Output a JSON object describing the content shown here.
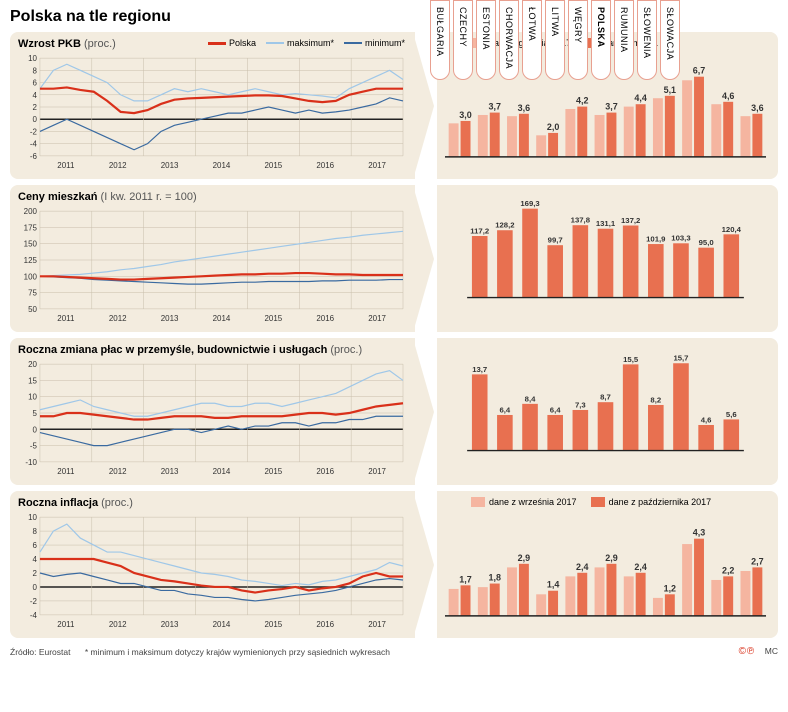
{
  "title": "Polska na tle regionu",
  "footer": {
    "source": "Źródło:  Eurostat",
    "note": "* minimum i maksimum dotyczy krajów wymienionych przy sąsiednich wykresach",
    "cc": "©℗",
    "author": "MC"
  },
  "countries": [
    "BUŁGARIA",
    "CZECHY",
    "ESTONIA",
    "CHORWACJA",
    "ŁOTWA",
    "LITWA",
    "WĘGRY",
    "POLSKA",
    "RUMUNIA",
    "SŁOWENIA",
    "SŁOWACJA"
  ],
  "bold_country_index": 7,
  "line_legend": {
    "polska": "Polska",
    "max": "maksimum*",
    "min": "minimum*"
  },
  "colors": {
    "bg_panel": "#f3ecdf",
    "polska": "#d9301a",
    "max": "#9fc7e8",
    "min": "#3a6aa0",
    "bar_light": "#f5b5a0",
    "bar_dark": "#e87050",
    "grid": "#c8beab",
    "zero": "#222222",
    "axis_text": "#333333"
  },
  "x_years": [
    "2011",
    "2012",
    "2013",
    "2014",
    "2015",
    "2016",
    "2017"
  ],
  "rows": [
    {
      "title": "Wzrost PKB",
      "unit": "(proc.)",
      "line": {
        "ylim": [
          -6,
          10
        ],
        "yticks": [
          -6,
          -4,
          -2,
          0,
          2,
          4,
          6,
          8,
          10
        ],
        "polska": [
          5,
          5,
          5.2,
          4.8,
          4.5,
          3.0,
          1.2,
          1.0,
          1.5,
          2.5,
          3.2,
          3.4,
          3.5,
          3.6,
          3.7,
          3.8,
          3.9,
          3.9,
          3.8,
          3.4,
          3.0,
          2.8,
          3.0,
          4.0,
          4.5,
          5.0,
          5.0,
          5.0
        ],
        "max": [
          5,
          8,
          9,
          8,
          7,
          6,
          4,
          3,
          3,
          4,
          5,
          4.5,
          5,
          4.5,
          4,
          4.5,
          5,
          4.5,
          4,
          4.2,
          4,
          3.8,
          3.5,
          5,
          6,
          7,
          8,
          6.5
        ],
        "min": [
          -2,
          -1,
          0,
          -1,
          -2,
          -3,
          -4,
          -5,
          -4,
          -2,
          -1,
          -0.5,
          0,
          0.5,
          1,
          1,
          1.5,
          2,
          1.5,
          1,
          1.5,
          1,
          1.2,
          1.5,
          2,
          2.5,
          3.5,
          3.0
        ]
      },
      "bar": {
        "legend": {
          "light": "dane z grudnia 2017",
          "dark": "dane z marca 2018"
        },
        "max_val": 7.5,
        "show_light": true,
        "light": [
          2.8,
          3.5,
          3.4,
          1.8,
          4.0,
          3.5,
          4.2,
          4.9,
          6.4,
          4.4,
          3.4
        ],
        "dark": [
          3.0,
          3.7,
          3.6,
          2.0,
          4.2,
          3.7,
          4.4,
          5.1,
          6.7,
          4.6,
          3.6
        ],
        "labels": [
          "3,0",
          "3,7",
          "3,6",
          "2,0",
          "4,2",
          "3,7",
          "4,4",
          "5,1",
          "6,7",
          "4,6",
          "3,6"
        ]
      }
    },
    {
      "title": "Ceny mieszkań",
      "unit": "(I kw. 2011 r. = 100)",
      "line": {
        "ylim": [
          50,
          200
        ],
        "yticks": [
          50,
          75,
          100,
          125,
          150,
          175,
          200
        ],
        "polska": [
          100,
          100,
          99,
          98,
          97,
          96,
          95,
          95,
          96,
          97,
          98,
          99,
          100,
          101,
          102,
          103,
          103,
          104,
          104,
          105,
          105,
          104,
          103,
          103,
          102,
          102,
          102,
          102
        ],
        "max": [
          100,
          101,
          102,
          103,
          105,
          107,
          110,
          112,
          115,
          118,
          122,
          125,
          128,
          131,
          134,
          137,
          140,
          143,
          146,
          149,
          152,
          155,
          158,
          160,
          163,
          165,
          167,
          169
        ],
        "min": [
          100,
          99,
          98,
          97,
          95,
          94,
          93,
          92,
          91,
          90,
          89,
          88,
          88,
          89,
          90,
          91,
          91,
          92,
          92,
          92,
          92,
          93,
          93,
          94,
          94,
          94,
          95,
          95
        ]
      },
      "bar": {
        "legend": null,
        "max_val": 180,
        "show_light": false,
        "dark": [
          117.2,
          128.2,
          169.3,
          99.7,
          137.8,
          131.1,
          137.2,
          101.9,
          103.3,
          95.0,
          120.4
        ],
        "labels": [
          "117,2",
          "128,2",
          "169,3",
          "99,7",
          "137,8",
          "131,1",
          "137,2",
          "101,9",
          "103,3",
          "95,0",
          "120,4"
        ]
      }
    },
    {
      "title": "Roczna zmiana płac w przemyśle, budownictwie i usługach",
      "unit": "(proc.)",
      "line": {
        "ylim": [
          -10,
          20
        ],
        "yticks": [
          -10,
          -5,
          0,
          5,
          10,
          15,
          20
        ],
        "polska": [
          4,
          4,
          5,
          5,
          4.5,
          4,
          3.5,
          3,
          3,
          3.5,
          4,
          4,
          4,
          3.5,
          3.5,
          4,
          4,
          4,
          4,
          4.5,
          5,
          5,
          4.5,
          5,
          6,
          7,
          7.5,
          8
        ],
        "max": [
          6,
          7,
          8,
          9,
          7,
          6,
          5,
          4,
          4,
          5,
          6,
          7,
          8,
          8,
          7,
          7,
          8,
          8,
          7,
          8,
          9,
          10,
          11,
          13,
          15,
          17,
          18,
          15
        ],
        "min": [
          -1,
          -2,
          -3,
          -4,
          -5,
          -5,
          -4,
          -3,
          -2,
          -1,
          0,
          0,
          -1,
          0,
          1,
          0,
          1,
          1,
          2,
          2,
          1,
          2,
          2,
          3,
          3,
          4,
          4,
          4
        ]
      },
      "bar": {
        "legend": null,
        "max_val": 17,
        "show_light": false,
        "dark": [
          13.7,
          6.4,
          8.4,
          6.4,
          7.3,
          8.7,
          15.5,
          8.2,
          15.7,
          4.6,
          5.6
        ],
        "labels": [
          "13,7",
          "6,4",
          "8,4",
          "6,4",
          "7,3",
          "8,7",
          "15,5",
          "8,2",
          "15,7",
          "4,6",
          "5,6"
        ]
      }
    },
    {
      "title": "Roczna inflacja",
      "unit": "(proc.)",
      "line": {
        "ylim": [
          -4,
          10
        ],
        "yticks": [
          -4,
          -2,
          0,
          2,
          4,
          6,
          8,
          10
        ],
        "polska": [
          4,
          4,
          4,
          4,
          4,
          3.5,
          3,
          2,
          1.5,
          1,
          0.8,
          0.5,
          0.2,
          0,
          0,
          -0.5,
          -0.8,
          -0.5,
          -0.3,
          0,
          -0.5,
          -0.2,
          0.0,
          0.5,
          1.5,
          2,
          1.5,
          1.5
        ],
        "max": [
          5,
          8,
          9,
          7,
          6,
          5,
          5,
          4.5,
          4,
          3.5,
          3,
          2.5,
          2,
          1.8,
          1.5,
          1,
          0.8,
          0.5,
          0.2,
          0.5,
          0.3,
          0.8,
          1,
          1.5,
          2,
          2.5,
          3.5,
          3
        ],
        "min": [
          2,
          1.5,
          1.8,
          2,
          1.5,
          1,
          0.5,
          0.5,
          0,
          -0.5,
          -0.5,
          -1,
          -1.2,
          -1.5,
          -1.5,
          -1.8,
          -2,
          -1.8,
          -1.5,
          -1.2,
          -1,
          -0.8,
          -0.5,
          0,
          0.5,
          1,
          1.2,
          1
        ]
      },
      "bar": {
        "legend": {
          "light": "dane z września 2017",
          "dark": "dane z października 2017"
        },
        "max_val": 5,
        "show_light": true,
        "light": [
          1.5,
          1.6,
          2.7,
          1.2,
          2.2,
          2.7,
          2.2,
          1.0,
          4.0,
          2.0,
          2.5
        ],
        "dark": [
          1.7,
          1.8,
          2.9,
          1.4,
          2.4,
          2.9,
          2.4,
          1.2,
          4.3,
          2.2,
          2.7
        ],
        "labels": [
          "1,7",
          "1,8",
          "2,9",
          "1,4",
          "2,4",
          "2,9",
          "2,4",
          "1,2",
          "4,3",
          "2,2",
          "2,7"
        ]
      }
    }
  ]
}
